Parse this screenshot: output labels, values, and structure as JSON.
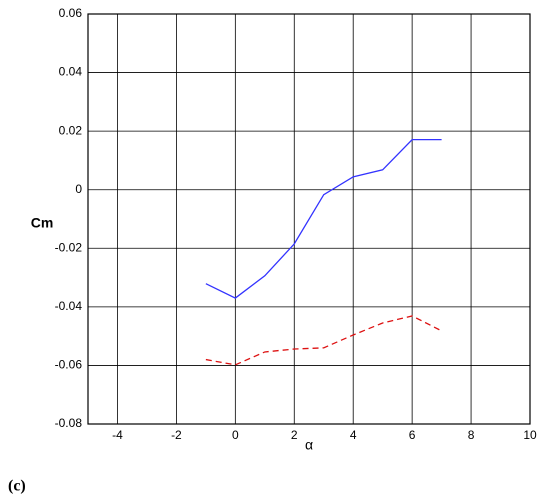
{
  "chart_data": {
    "type": "line",
    "xlabel": "α",
    "ylabel": "Cm",
    "caption": "(c)",
    "x": [
      -1,
      0,
      1,
      2,
      3,
      4,
      5,
      6,
      7
    ],
    "series": [
      {
        "color": "#3333ff",
        "line_style": "solid",
        "values": [
          -0.0321,
          -0.037,
          -0.0294,
          -0.0185,
          -0.0017,
          0.0044,
          0.0068,
          0.0171,
          0.0171
        ]
      },
      {
        "color": "#dd1111",
        "line_style": "dashed",
        "values": [
          -0.058,
          -0.0598,
          -0.0554,
          -0.0544,
          -0.054,
          -0.0496,
          -0.0455,
          -0.0431,
          -0.0482
        ]
      }
    ],
    "xlim": [
      -5,
      10
    ],
    "xticks": [
      -4,
      -2,
      0,
      2,
      4,
      6,
      8,
      10
    ],
    "ylim": [
      -0.08,
      0.06
    ],
    "yticks": [
      -0.08,
      -0.06,
      -0.04,
      -0.02,
      0,
      0.02,
      0.04,
      0.06
    ],
    "grid": true
  }
}
